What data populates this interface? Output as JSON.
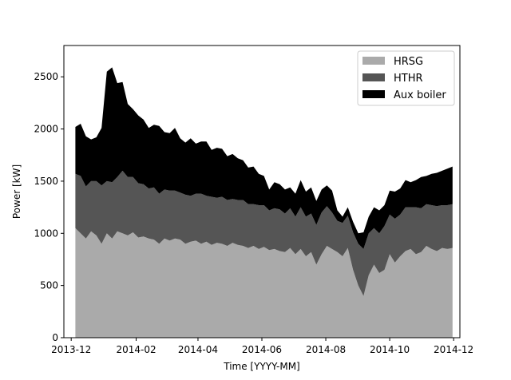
{
  "chart_data": {
    "type": "area",
    "stacked": true,
    "xlabel": "Time [YYYY-MM]",
    "ylabel": "Power [kW]",
    "ylim": [
      0,
      2800
    ],
    "xlim": [
      "2013-11-24",
      "2014-12-07"
    ],
    "yticks": [
      0,
      500,
      1000,
      1500,
      2000,
      2500
    ],
    "xticks": [
      "2013-12",
      "2014-02",
      "2014-04",
      "2014-06",
      "2014-08",
      "2014-10",
      "2014-12"
    ],
    "grid": false,
    "legend_position": "top-right",
    "x": [
      "2013-12-05",
      "2013-12-10",
      "2013-12-15",
      "2013-12-20",
      "2013-12-25",
      "2013-12-30",
      "2014-01-04",
      "2014-01-09",
      "2014-01-14",
      "2014-01-19",
      "2014-01-24",
      "2014-01-29",
      "2014-02-03",
      "2014-02-08",
      "2014-02-13",
      "2014-02-18",
      "2014-02-23",
      "2014-02-28",
      "2014-03-05",
      "2014-03-10",
      "2014-03-15",
      "2014-03-20",
      "2014-03-25",
      "2014-03-30",
      "2014-04-04",
      "2014-04-09",
      "2014-04-14",
      "2014-04-19",
      "2014-04-24",
      "2014-04-29",
      "2014-05-04",
      "2014-05-09",
      "2014-05-14",
      "2014-05-19",
      "2014-05-24",
      "2014-05-29",
      "2014-06-03",
      "2014-06-08",
      "2014-06-13",
      "2014-06-18",
      "2014-06-23",
      "2014-06-28",
      "2014-07-03",
      "2014-07-08",
      "2014-07-13",
      "2014-07-18",
      "2014-07-23",
      "2014-07-28",
      "2014-08-02",
      "2014-08-07",
      "2014-08-12",
      "2014-08-17",
      "2014-08-22",
      "2014-08-27",
      "2014-09-01",
      "2014-09-06",
      "2014-09-11",
      "2014-09-16",
      "2014-09-21",
      "2014-09-26",
      "2014-10-01",
      "2014-10-06",
      "2014-10-11",
      "2014-10-16",
      "2014-10-21",
      "2014-10-26",
      "2014-10-31",
      "2014-11-05",
      "2014-11-10",
      "2014-11-15",
      "2014-11-20",
      "2014-11-25",
      "2014-11-30"
    ],
    "series": [
      {
        "name": "HRSG",
        "color": "#aaaaaa",
        "values": [
          1050,
          1000,
          950,
          1020,
          980,
          900,
          1000,
          950,
          1020,
          1000,
          980,
          1010,
          960,
          970,
          950,
          940,
          900,
          950,
          930,
          950,
          940,
          900,
          920,
          930,
          900,
          920,
          890,
          910,
          900,
          880,
          910,
          890,
          880,
          860,
          880,
          850,
          870,
          840,
          850,
          830,
          820,
          860,
          800,
          850,
          780,
          820,
          700,
          800,
          880,
          850,
          820,
          780,
          860,
          650,
          500,
          400,
          600,
          700,
          620,
          650,
          800,
          720,
          780,
          830,
          850,
          800,
          820,
          880,
          850,
          830,
          860,
          850,
          860
        ]
      },
      {
        "name": "HTHR",
        "color": "#555555",
        "values": [
          520,
          550,
          500,
          480,
          520,
          560,
          500,
          540,
          520,
          600,
          560,
          530,
          520,
          500,
          480,
          500,
          480,
          470,
          480,
          460,
          450,
          470,
          440,
          450,
          480,
          440,
          460,
          430,
          450,
          440,
          420,
          430,
          440,
          420,
          400,
          420,
          400,
          380,
          390,
          400,
          370,
          380,
          360,
          400,
          380,
          370,
          380,
          400,
          380,
          350,
          300,
          320,
          310,
          360,
          400,
          450,
          400,
          350,
          380,
          420,
          380,
          420,
          400,
          420,
          400,
          450,
          420,
          400,
          420,
          430,
          410,
          420,
          420
        ]
      },
      {
        "name": "Aux boiler",
        "color": "#000000",
        "values": [
          450,
          500,
          480,
          400,
          420,
          550,
          1050,
          1100,
          900,
          850,
          700,
          650,
          650,
          620,
          580,
          600,
          650,
          550,
          550,
          600,
          520,
          500,
          550,
          480,
          500,
          520,
          450,
          480,
          460,
          420,
          430,
          400,
          380,
          350,
          360,
          300,
          280,
          200,
          250,
          240,
          230,
          200,
          220,
          260,
          240,
          250,
          230,
          220,
          200,
          210,
          100,
          60,
          80,
          100,
          100,
          160,
          160,
          200,
          220,
          200,
          230,
          260,
          250,
          260,
          240,
          260,
          300,
          270,
          300,
          320,
          330,
          350,
          360
        ]
      }
    ]
  }
}
